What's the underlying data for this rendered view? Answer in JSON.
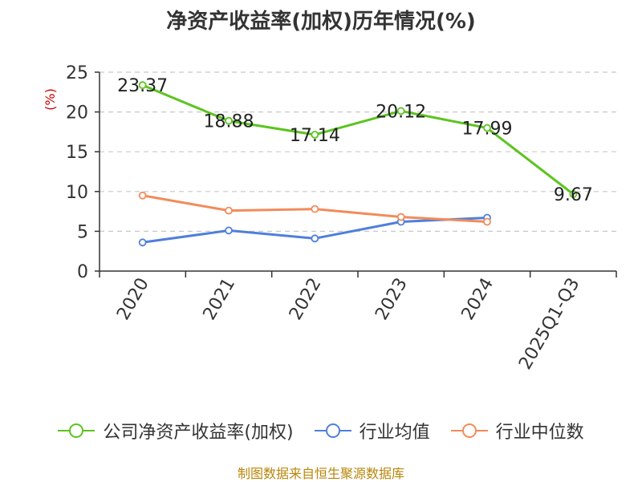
{
  "chart_data": {
    "type": "line",
    "title": "净资产收益率(加权)历年情况(%)",
    "ylabel": "(%)",
    "categories": [
      "2020",
      "2021",
      "2022",
      "2023",
      "2024",
      "2025Q1-Q3"
    ],
    "ylim": [
      0,
      25
    ],
    "yticks": [
      0,
      5,
      10,
      15,
      20,
      25
    ],
    "grid": true,
    "legend_position": "bottom",
    "series": [
      {
        "name": "公司净资产收益率(加权)",
        "color": "#5cc41f",
        "values": [
          23.37,
          18.88,
          17.14,
          20.12,
          17.99,
          9.67
        ],
        "show_labels": true
      },
      {
        "name": "行业均值",
        "color": "#4f7fdc",
        "values": [
          3.6,
          5.1,
          4.1,
          6.2,
          6.7,
          null
        ],
        "show_labels": false
      },
      {
        "name": "行业中位数",
        "color": "#f28b5b",
        "values": [
          9.5,
          7.6,
          7.8,
          6.8,
          6.2,
          null
        ],
        "show_labels": false
      }
    ]
  },
  "source_note": "制图数据来自恒生聚源数据库"
}
